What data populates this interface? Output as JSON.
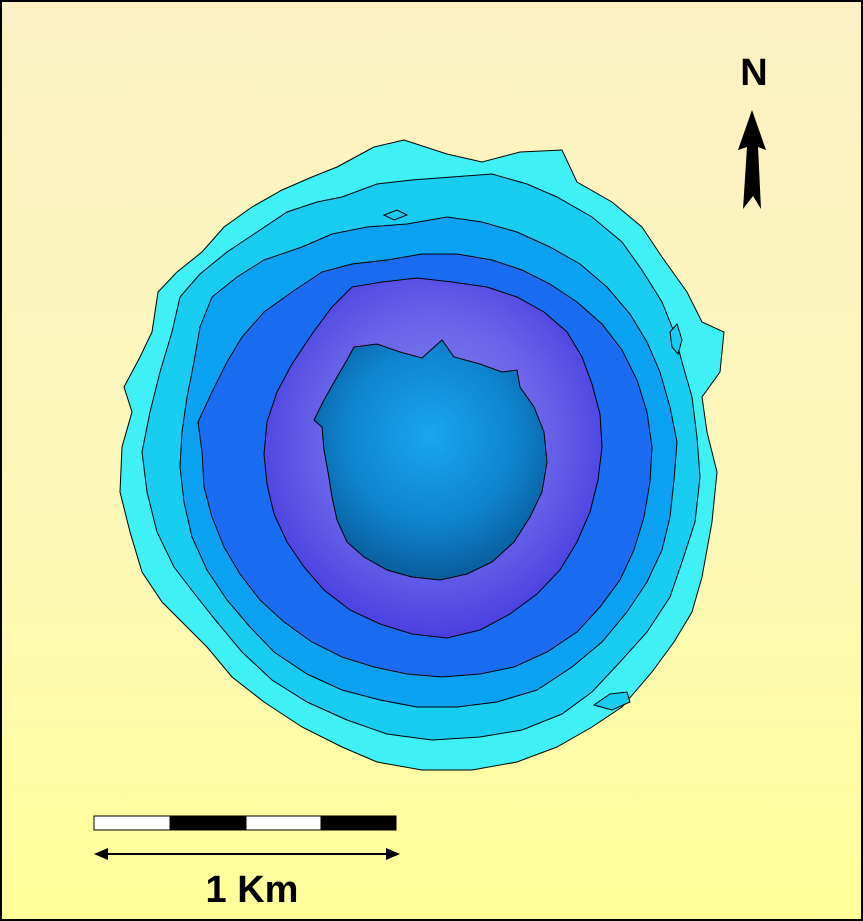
{
  "map": {
    "north_label": "N",
    "scale_label": "1 Km",
    "north_arrow_icon": "north-arrow-icon",
    "colors": {
      "background_top": "#fbf1c4",
      "background_bottom": "#ffff99",
      "ring_outer": "#3ff0f5",
      "ring_2": "#19cdf0",
      "ring_3": "#0ba2f2",
      "ring_4": "#1a6cf0",
      "ring_5": "#4a47e4",
      "core": "#0a6fc0",
      "outline": "#000000"
    }
  }
}
